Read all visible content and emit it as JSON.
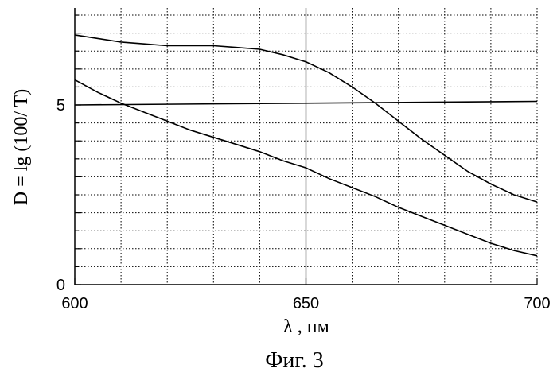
{
  "chart_data": {
    "type": "line",
    "xlabel": "λ , нм",
    "ylabel": "D = lg (100/ T)",
    "caption": "Фиг. 3",
    "xlim": [
      600,
      700
    ],
    "ylim": [
      0,
      7.7
    ],
    "x_ticks": [
      "600",
      "650",
      "700"
    ],
    "y_ticks": [
      "0",
      "5"
    ],
    "grid": true,
    "series": [
      {
        "x": [
          600,
          605,
          610,
          615,
          620,
          625,
          630,
          635,
          640,
          645,
          650,
          655,
          660,
          665,
          670,
          675,
          680,
          685,
          690,
          695,
          700
        ],
        "y": [
          6.95,
          6.85,
          6.75,
          6.7,
          6.65,
          6.65,
          6.65,
          6.6,
          6.55,
          6.4,
          6.2,
          5.9,
          5.5,
          5.05,
          4.55,
          4.05,
          3.6,
          3.15,
          2.8,
          2.5,
          2.3
        ]
      },
      {
        "x": [
          600,
          605,
          610,
          615,
          620,
          625,
          630,
          635,
          640,
          645,
          650,
          655,
          660,
          665,
          670,
          675,
          680,
          685,
          690,
          695,
          700
        ],
        "y": [
          5.7,
          5.35,
          5.05,
          4.8,
          4.55,
          4.3,
          4.1,
          3.9,
          3.7,
          3.45,
          3.25,
          2.95,
          2.7,
          2.45,
          2.15,
          1.9,
          1.65,
          1.4,
          1.15,
          0.95,
          0.8
        ]
      },
      {
        "x": [
          600,
          700
        ],
        "y": [
          5.0,
          5.1
        ]
      }
    ]
  }
}
